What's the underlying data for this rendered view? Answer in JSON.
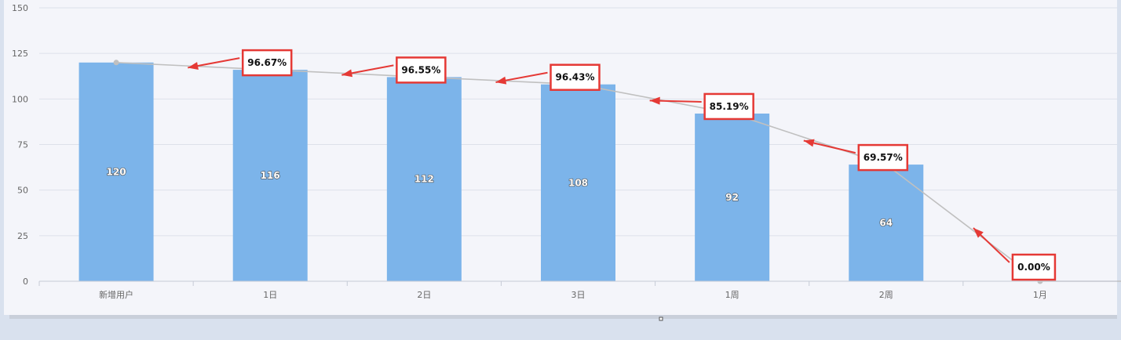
{
  "chart_data": {
    "type": "bar",
    "categories": [
      "新增用户",
      "1日",
      "2日",
      "3日",
      "1周",
      "2周",
      "1月"
    ],
    "series": [
      {
        "type": "bar",
        "values": [
          120,
          116,
          112,
          108,
          92,
          64,
          0
        ]
      },
      {
        "type": "line",
        "values": [
          120,
          116,
          112,
          108,
          92,
          64,
          0
        ]
      }
    ],
    "data_labels": [
      "120",
      "116",
      "112",
      "108",
      "92",
      "64",
      ""
    ],
    "ylim": [
      0,
      150
    ],
    "yticks": [
      0,
      25,
      50,
      75,
      100,
      125,
      150
    ],
    "ytick_labels": [
      "0",
      "25",
      "50",
      "75",
      "100",
      "125",
      "150"
    ],
    "grid": true,
    "annotations": [
      {
        "text": "96.67%",
        "category_index": 1
      },
      {
        "text": "96.55%",
        "category_index": 2
      },
      {
        "text": "96.43%",
        "category_index": 3
      },
      {
        "text": "85.19%",
        "category_index": 4
      },
      {
        "text": "69.57%",
        "category_index": 5
      },
      {
        "text": "0.00%",
        "category_index": 6
      }
    ],
    "colors": {
      "bar": "#7cb4ea",
      "line": "#c0c0c0",
      "grid": "#dde1ea",
      "annotation": "#e53935",
      "background": "#f4f5fa"
    }
  }
}
